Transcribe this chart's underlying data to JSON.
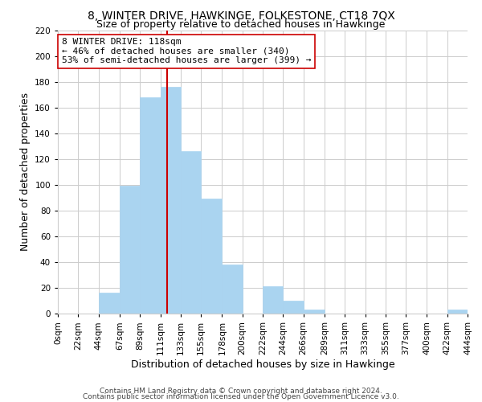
{
  "title": "8, WINTER DRIVE, HAWKINGE, FOLKESTONE, CT18 7QX",
  "subtitle": "Size of property relative to detached houses in Hawkinge",
  "xlabel": "Distribution of detached houses by size in Hawkinge",
  "ylabel": "Number of detached properties",
  "bar_edges": [
    0,
    22,
    44,
    67,
    89,
    111,
    133,
    155,
    178,
    200,
    222,
    244,
    266,
    289,
    311,
    333,
    355,
    377,
    400,
    422,
    444
  ],
  "bar_heights": [
    0,
    0,
    16,
    99,
    168,
    176,
    126,
    89,
    38,
    0,
    21,
    10,
    3,
    0,
    0,
    0,
    0,
    0,
    0,
    3
  ],
  "tick_labels": [
    "0sqm",
    "22sqm",
    "44sqm",
    "67sqm",
    "89sqm",
    "111sqm",
    "133sqm",
    "155sqm",
    "178sqm",
    "200sqm",
    "222sqm",
    "244sqm",
    "266sqm",
    "289sqm",
    "311sqm",
    "333sqm",
    "355sqm",
    "377sqm",
    "400sqm",
    "422sqm",
    "444sqm"
  ],
  "bar_color": "#aad4f0",
  "bar_edge_color": "#aad4f0",
  "vline_x": 118,
  "vline_color": "#cc0000",
  "annotation_title": "8 WINTER DRIVE: 118sqm",
  "annotation_line1": "← 46% of detached houses are smaller (340)",
  "annotation_line2": "53% of semi-detached houses are larger (399) →",
  "annotation_box_color": "#ffffff",
  "annotation_box_edge": "#cc0000",
  "ylim": [
    0,
    220
  ],
  "yticks": [
    0,
    20,
    40,
    60,
    80,
    100,
    120,
    140,
    160,
    180,
    200,
    220
  ],
  "grid_color": "#cccccc",
  "bg_color": "#ffffff",
  "footer1": "Contains HM Land Registry data © Crown copyright and database right 2024.",
  "footer2": "Contains public sector information licensed under the Open Government Licence v3.0.",
  "title_fontsize": 10,
  "subtitle_fontsize": 9,
  "axis_label_fontsize": 9,
  "tick_fontsize": 7.5,
  "footer_fontsize": 6.5
}
